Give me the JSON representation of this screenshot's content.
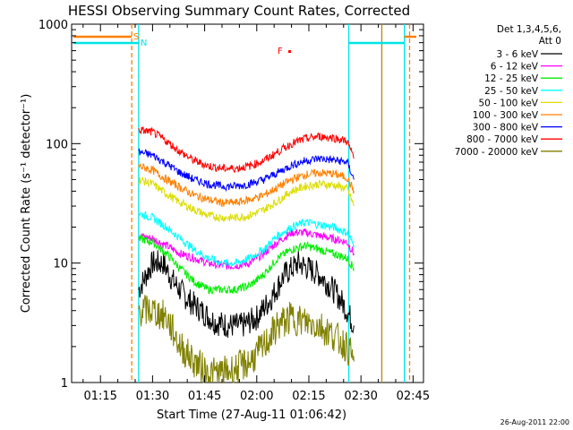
{
  "chart_data": {
    "type": "line",
    "title": "HESSI Observing Summary Count Rates, Corrected",
    "xlabel": "Start Time (27-Aug-11 01:06:42)",
    "ylabel": "Corrected Count Rate (s⁻¹ detector⁻¹)",
    "y_scale": "log",
    "ylim": [
      1,
      1000
    ],
    "xlim_minutes": [
      6.7,
      108
    ],
    "x_tick_labels": [
      "01:15",
      "01:30",
      "01:45",
      "02:00",
      "02:15",
      "02:30",
      "02:45"
    ],
    "x_tick_minutes": [
      15,
      30,
      45,
      60,
      75,
      90,
      105
    ],
    "y_tick_labels": [
      "1",
      "10",
      "100",
      "1000"
    ],
    "y_tick_values": [
      1,
      10,
      100,
      1000
    ],
    "legend_header": [
      "Det 1,3,4,5,6,",
      "Att 0"
    ],
    "legend_position": "right",
    "timestamp": "26-Aug-2011 22:00",
    "flags": [
      {
        "label": "S",
        "minute": 24.5,
        "color": "#ff8000"
      },
      {
        "label": "N",
        "minute": 26.5,
        "color": "#00e5e5"
      },
      {
        "label": "F",
        "minute": 66,
        "color": "#ff0000"
      }
    ],
    "boundary_lines": [
      {
        "minute": 26.0,
        "color": "#00e5e5"
      },
      {
        "minute": 24.0,
        "color": "#ff8000"
      },
      {
        "minute": 86.5,
        "color": "#00e5e5"
      },
      {
        "minute": 102.5,
        "color": "#00e5e5"
      },
      {
        "minute": 104.0,
        "color": "#ff8000"
      },
      {
        "minute": 96.0,
        "color": "#b8860b"
      }
    ],
    "series": [
      {
        "name": "3 - 6 keV",
        "color": "#000000",
        "x": [
          26,
          30,
          33,
          36,
          40,
          44,
          48,
          52,
          56,
          60,
          64,
          68,
          72,
          75,
          78,
          82,
          84,
          86,
          88
        ],
        "y": [
          6,
          10,
          10,
          7,
          5,
          4,
          3.2,
          3,
          3,
          3.5,
          5,
          8,
          10,
          9,
          8,
          6,
          5,
          4,
          3
        ]
      },
      {
        "name": "6 - 12 keV",
        "color": "#ff00ff",
        "x": [
          26,
          30,
          34,
          38,
          42,
          46,
          50,
          54,
          58,
          62,
          66,
          70,
          74,
          78,
          82,
          86,
          88
        ],
        "y": [
          17,
          16,
          14,
          12,
          11,
          10,
          9.5,
          9.5,
          10,
          12,
          15,
          18,
          18,
          17,
          16,
          15,
          12
        ]
      },
      {
        "name": "12 - 25 keV",
        "color": "#00ee00",
        "x": [
          26,
          30,
          34,
          38,
          42,
          46,
          50,
          54,
          58,
          62,
          66,
          70,
          74,
          78,
          82,
          86,
          88
        ],
        "y": [
          16,
          15,
          12,
          9,
          7,
          6,
          6,
          6,
          6.5,
          8,
          11,
          13,
          14,
          13,
          12,
          11,
          9
        ]
      },
      {
        "name": "25 - 50 keV",
        "color": "#00ffff",
        "x": [
          26,
          30,
          34,
          38,
          42,
          46,
          50,
          54,
          58,
          62,
          66,
          70,
          74,
          78,
          82,
          86,
          88
        ],
        "y": [
          26,
          24,
          20,
          16,
          13,
          11,
          10,
          10,
          11,
          13,
          17,
          20,
          22,
          21,
          20,
          18,
          14
        ]
      },
      {
        "name": "50 - 100 keV",
        "color": "#dddd00",
        "x": [
          26,
          30,
          34,
          38,
          42,
          46,
          50,
          54,
          58,
          62,
          66,
          70,
          74,
          78,
          82,
          86,
          88
        ],
        "y": [
          50,
          46,
          38,
          32,
          28,
          25,
          24,
          24,
          25,
          28,
          33,
          40,
          44,
          46,
          45,
          42,
          30
        ]
      },
      {
        "name": "100 - 300 keV",
        "color": "#ff8000",
        "x": [
          26,
          30,
          34,
          38,
          42,
          46,
          50,
          54,
          58,
          62,
          66,
          70,
          74,
          78,
          82,
          86,
          88
        ],
        "y": [
          65,
          60,
          50,
          43,
          37,
          34,
          32,
          32,
          34,
          37,
          43,
          50,
          55,
          57,
          56,
          52,
          40
        ]
      },
      {
        "name": "300 - 800 keV",
        "color": "#0000ff",
        "x": [
          26,
          30,
          34,
          38,
          42,
          46,
          50,
          54,
          58,
          62,
          66,
          70,
          74,
          78,
          82,
          86,
          88
        ],
        "y": [
          85,
          80,
          68,
          57,
          50,
          46,
          44,
          44,
          46,
          50,
          57,
          66,
          72,
          75,
          73,
          70,
          50
        ]
      },
      {
        "name": "800 - 7000 keV",
        "color": "#ff0000",
        "x": [
          26,
          30,
          34,
          38,
          42,
          46,
          50,
          54,
          58,
          62,
          66,
          70,
          74,
          78,
          82,
          86,
          88
        ],
        "y": [
          130,
          125,
          105,
          85,
          72,
          65,
          62,
          62,
          65,
          72,
          85,
          100,
          110,
          115,
          112,
          105,
          75
        ]
      },
      {
        "name": "7000 - 20000 keV",
        "color": "#808000",
        "x": [
          26,
          30,
          34,
          38,
          42,
          46,
          50,
          54,
          58,
          62,
          66,
          70,
          74,
          78,
          82,
          86,
          88
        ],
        "y": [
          4,
          4,
          3.5,
          2,
          1.5,
          1.2,
          1.2,
          1.3,
          1.5,
          2,
          3,
          3.5,
          3.2,
          3,
          2.5,
          2,
          1.5
        ]
      }
    ]
  }
}
